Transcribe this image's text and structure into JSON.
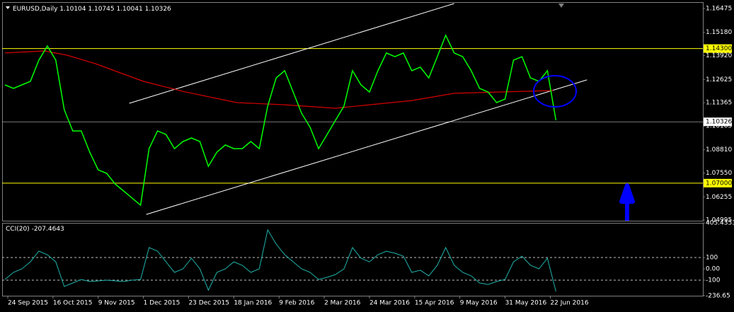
{
  "chart_data": {
    "type": "line",
    "title": "EURUSD,Daily",
    "ohlc": [
      1.10104,
      1.10745,
      1.10041,
      1.10326
    ],
    "xlim": [
      -1,
      247
    ],
    "ylim": [
      1.0496,
      1.1678
    ],
    "xticks": [
      {
        "value": 1,
        "label": "24 Sep 2015"
      },
      {
        "value": 17,
        "label": "16 Oct 2015"
      },
      {
        "value": 33,
        "label": "9 Nov 2015"
      },
      {
        "value": 49,
        "label": "1 Dec 2015"
      },
      {
        "value": 65,
        "label": "23 Dec 2015"
      },
      {
        "value": 81,
        "label": "18 Jan 2016"
      },
      {
        "value": 97,
        "label": "9 Feb 2016"
      },
      {
        "value": 113,
        "label": "2 Mar 2016"
      },
      {
        "value": 129,
        "label": "24 Mar 2016"
      },
      {
        "value": 145,
        "label": "15 Apr 2016"
      },
      {
        "value": 161,
        "label": "9 May 2016"
      },
      {
        "value": 177,
        "label": "31 May 2016"
      },
      {
        "value": 193,
        "label": "22 Jun 2016"
      }
    ],
    "yticks": [
      1.16475,
      {
        "value": 1.1518,
        "label": "1.15180"
      },
      {
        "value": 1.1392,
        "label": "1.13920"
      },
      1.12625,
      1.11365,
      1.10105,
      {
        "value": 1.0881,
        "label": "1.08810"
      },
      {
        "value": 1.0755,
        "label": "1.07550"
      },
      1.06255,
      1.04995
    ],
    "price": {
      "color": "#00ff00",
      "x": [
        0,
        3,
        6,
        9,
        12,
        15,
        18,
        21,
        24,
        27,
        30,
        33,
        36,
        39,
        42,
        45,
        48,
        51,
        54,
        57,
        60,
        63,
        66,
        69,
        72,
        75,
        78,
        81,
        84,
        87,
        90,
        93,
        96,
        99,
        102,
        105,
        108,
        111,
        114,
        117,
        120,
        123,
        126,
        129,
        132,
        135,
        138,
        141,
        144,
        147,
        150,
        153,
        156,
        159,
        162,
        165,
        168,
        171,
        174,
        177,
        180,
        183,
        186,
        189,
        192,
        195
      ],
      "values": [
        1.1233,
        1.1214,
        1.1233,
        1.1252,
        1.1367,
        1.1444,
        1.1367,
        1.1098,
        1.0983,
        1.0983,
        1.0868,
        1.0772,
        1.0753,
        1.0695,
        1.0657,
        1.0619,
        1.058,
        1.0887,
        1.0983,
        1.0964,
        1.0887,
        1.0926,
        1.0945,
        1.0926,
        1.0791,
        1.0868,
        1.0907,
        1.0887,
        1.0887,
        1.0926,
        1.0887,
        1.1118,
        1.1271,
        1.131,
        1.1194,
        1.1079,
        1.1003,
        1.0887,
        1.0964,
        1.1041,
        1.1118,
        1.131,
        1.1233,
        1.1194,
        1.131,
        1.1406,
        1.1386,
        1.1406,
        1.131,
        1.1329,
        1.1271,
        1.1386,
        1.1502,
        1.1406,
        1.1386,
        1.131,
        1.1214,
        1.1194,
        1.1137,
        1.1156,
        1.1367,
        1.1386,
        1.1271,
        1.1252,
        1.131,
        1.1041
      ]
    },
    "ma": {
      "color": "#d40000",
      "x": [
        0,
        14,
        22,
        32,
        49,
        64,
        82,
        99,
        117,
        129,
        144,
        159,
        174,
        194
      ],
      "values": [
        1.1406,
        1.1417,
        1.1394,
        1.1348,
        1.1252,
        1.1194,
        1.1137,
        1.1125,
        1.1106,
        1.1125,
        1.1148,
        1.1187,
        1.1194,
        1.1202
      ]
    },
    "trendlines": [
      {
        "color": "#ffffff",
        "x": [
          44,
          159
        ],
        "values": [
          1.1133,
          1.1674
        ]
      },
      {
        "color": "#ffffff",
        "x": [
          50,
          206
        ],
        "values": [
          1.053,
          1.126
        ]
      }
    ],
    "levels": [
      {
        "value": 1.143,
        "label": "1.14300",
        "color": "#ffff00"
      },
      {
        "value": 1.07,
        "label": "1.07000",
        "color": "#ffff00"
      }
    ],
    "current_color": "#c0c0c0",
    "cci": {
      "name": "CCI(20)",
      "last": -207.4643,
      "color": "#20b2aa",
      "ylim": [
        -237.5,
        412.5
      ],
      "yticks": [
        405.4353,
        100,
        {
          "value": 0,
          "label": "0.00"
        },
        -100,
        -236.65
      ],
      "levels": [
        100,
        -100
      ],
      "values": [
        -94,
        -31,
        0,
        62,
        156,
        125,
        62,
        -156,
        -125,
        -94,
        -112,
        -106,
        -100,
        -106,
        -112,
        -100,
        -94,
        188,
        156,
        62,
        -31,
        0,
        94,
        0,
        -188,
        -31,
        0,
        62,
        31,
        -31,
        0,
        344,
        219,
        125,
        62,
        0,
        -31,
        -94,
        -75,
        -50,
        0,
        188,
        94,
        62,
        125,
        156,
        138,
        112,
        -31,
        -12,
        -62,
        31,
        188,
        31,
        -31,
        -62,
        -125,
        -138,
        -112,
        -94,
        62,
        112,
        31,
        0,
        94,
        -200
      ]
    }
  }
}
